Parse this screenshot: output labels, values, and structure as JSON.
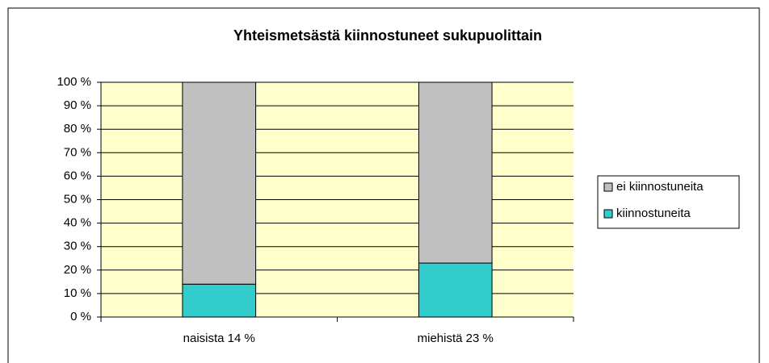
{
  "chart_data": {
    "type": "stacked_bar",
    "title": "Yhteismetsästä kiinnostuneet sukupuolittain",
    "categories": [
      "naisista 14 %",
      "miehistä 23 %"
    ],
    "series": [
      {
        "name": "kiinnostuneita",
        "color": "#33cccc",
        "values": [
          14,
          23
        ]
      },
      {
        "name": "ei kiinnostuneita",
        "color": "#c0c0c0",
        "values": [
          86,
          77
        ]
      }
    ],
    "ylim": [
      0,
      100
    ],
    "yticks": [
      {
        "value": 0,
        "label": "0 %"
      },
      {
        "value": 10,
        "label": "10 %"
      },
      {
        "value": 20,
        "label": "20 %"
      },
      {
        "value": 30,
        "label": "30 %"
      },
      {
        "value": 40,
        "label": "40 %"
      },
      {
        "value": 50,
        "label": "50 %"
      },
      {
        "value": 60,
        "label": "60 %"
      },
      {
        "value": 70,
        "label": "70 %"
      },
      {
        "value": 80,
        "label": "80 %"
      },
      {
        "value": 90,
        "label": "90 %"
      },
      {
        "value": 100,
        "label": "100 %"
      }
    ],
    "grid": true,
    "legend": "right",
    "plot_background": "#ffffcc"
  }
}
